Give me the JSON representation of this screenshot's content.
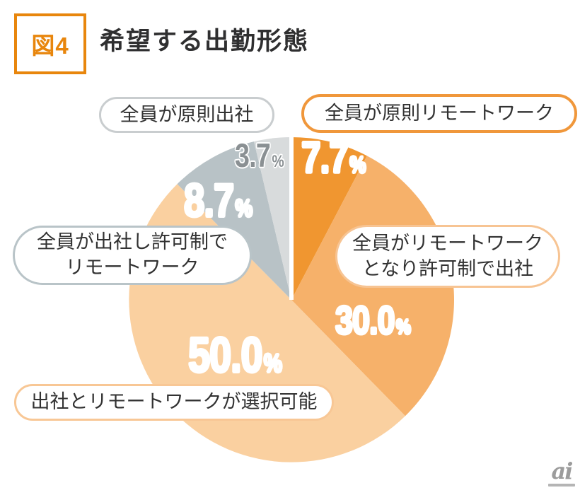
{
  "header": {
    "figure_label": "図4",
    "title": "希望する出勤形態"
  },
  "chart_data": {
    "type": "pie",
    "title": "希望する出勤形態",
    "unit": "%",
    "percent_sign": "%",
    "start_angle_deg": 0,
    "direction": "clockwise",
    "legend_position": "callouts-around-pie",
    "slices": [
      {
        "label": "全員が原則リモートワーク",
        "value": 7.7,
        "display": "7.7",
        "color": "#F09630",
        "callout_lines": [
          "全員が原則リモートワーク"
        ]
      },
      {
        "label": "全員がリモートワークとなり許可制で出社",
        "value": 30.0,
        "display": "30.0",
        "color": "#F6B16A",
        "callout_lines": [
          "全員がリモートワーク",
          "となり許可制で出社"
        ]
      },
      {
        "label": "出社とリモートワークが選択可能",
        "value": 50.0,
        "display": "50.0",
        "color": "#FAD0A0",
        "callout_lines": [
          "出社とリモートワークが選択可能"
        ]
      },
      {
        "label": "全員が出社し許可制でリモートワーク",
        "value": 8.7,
        "display": "8.7",
        "color": "#B8C2C6",
        "callout_lines": [
          "全員が出社し許可制で",
          "リモートワーク"
        ]
      },
      {
        "label": "全員が原則出社",
        "value": 3.7,
        "display": "3.7",
        "color": "#D8DBDC",
        "callout_lines": [
          "全員が原則出社"
        ]
      }
    ]
  },
  "colors": {
    "accent_orange": "#E8860D",
    "pill_border_orange": "#F0973B",
    "pill_border_light_orange": "#F7C493",
    "pill_border_peach": "#F8C795",
    "pill_border_gray": "#C9CDCF",
    "pill_border_bluegray": "#B9C4C8",
    "percent_gray_text": "#8A9093",
    "title_text": "#2F2F30",
    "logo_gray": "#9C9C9C"
  },
  "logo": {
    "text": "ai"
  }
}
